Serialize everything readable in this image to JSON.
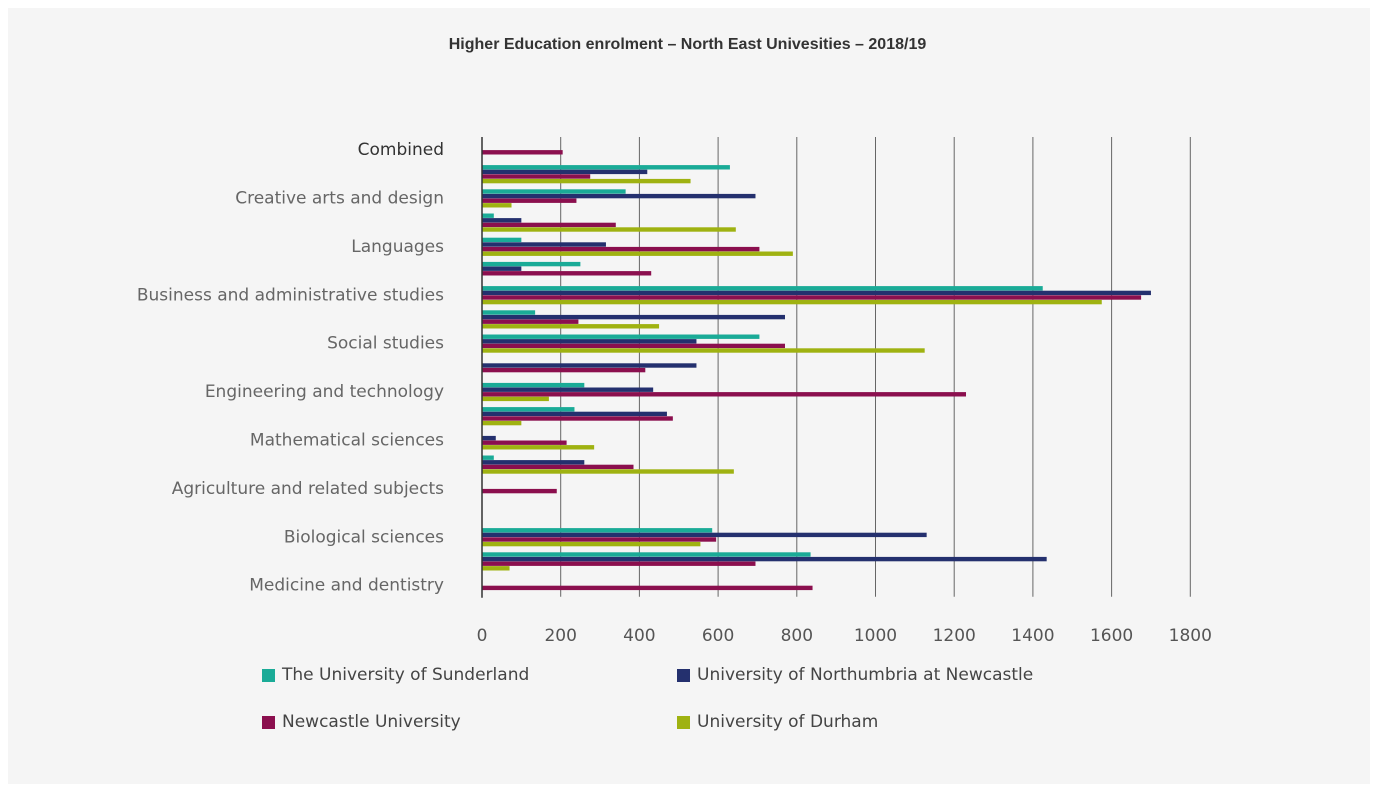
{
  "chart_data": {
    "type": "bar",
    "orientation": "horizontal",
    "title": "Higher Education enrolment – North East Univesities – 2018/19",
    "categories": [
      "Combined",
      "",
      "Creative arts and design",
      "",
      "Languages",
      "",
      "Business and administrative studies",
      "",
      "Social studies",
      "",
      "Engineering and technology",
      "",
      "Mathematical sciences",
      "",
      "Agriculture and related subjects",
      "",
      "Biological sciences",
      "",
      "Medicine and dentistry"
    ],
    "series": [
      {
        "name": "The University of Sunderland",
        "color": "#1aab97",
        "values": [
          0,
          630,
          365,
          30,
          100,
          250,
          1425,
          135,
          705,
          0,
          260,
          235,
          0,
          30,
          0,
          0,
          585,
          835,
          0
        ]
      },
      {
        "name": "University of Northumbria at Newcastle",
        "color": "#24306e",
        "values": [
          0,
          420,
          695,
          100,
          315,
          100,
          1700,
          770,
          545,
          545,
          435,
          470,
          35,
          260,
          0,
          0,
          1130,
          1435,
          0
        ]
      },
      {
        "name": "Newcastle University",
        "color": "#8b0f4e",
        "values": [
          205,
          275,
          240,
          340,
          705,
          430,
          1675,
          245,
          770,
          415,
          1230,
          485,
          215,
          385,
          190,
          0,
          595,
          695,
          840
        ]
      },
      {
        "name": "University of Durham",
        "color": "#9fb211",
        "values": [
          0,
          530,
          75,
          645,
          790,
          0,
          1575,
          450,
          1125,
          0,
          170,
          100,
          285,
          640,
          0,
          0,
          555,
          70,
          0
        ]
      }
    ],
    "xlim": [
      0,
      1800
    ],
    "xticks": [
      "0",
      "200",
      "400",
      "600",
      "800",
      "1000",
      "1200",
      "1400",
      "1600",
      "1800"
    ],
    "grid": true,
    "legend_position": "bottom"
  }
}
